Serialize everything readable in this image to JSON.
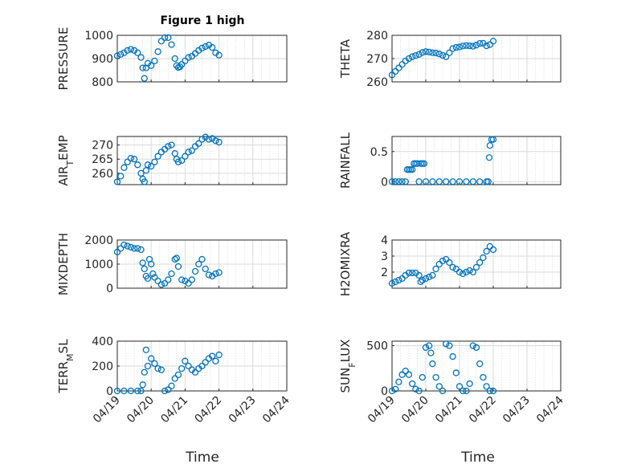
{
  "figure_title": "Figure 1 high",
  "x_axis_label": "Time",
  "x_tick_labels": [
    "04/19",
    "04/20",
    "04/21",
    "04/22",
    "04/23",
    "04/24"
  ],
  "marker_color": "#0072BD",
  "chart_data": [
    {
      "type": "scatter",
      "ylabel": "PRESSURE",
      "ylim": [
        800,
        1000
      ],
      "yticks": [
        800,
        900,
        1000
      ],
      "x": [
        0,
        0.1,
        0.2,
        0.3,
        0.4,
        0.5,
        0.6,
        0.7,
        0.75,
        0.8,
        0.85,
        0.9,
        1.0,
        1.1,
        1.2,
        1.3,
        1.4,
        1.5,
        1.6,
        1.7,
        1.75,
        1.8,
        1.85,
        1.9,
        2.0,
        2.1,
        2.2,
        2.3,
        2.4,
        2.5,
        2.6,
        2.7,
        2.8,
        2.9,
        3.0
      ],
      "y": [
        912,
        918,
        925,
        935,
        940,
        935,
        925,
        905,
        860,
        815,
        860,
        880,
        870,
        890,
        930,
        975,
        990,
        990,
        960,
        900,
        870,
        862,
        865,
        875,
        890,
        905,
        910,
        922,
        935,
        945,
        952,
        958,
        948,
        925,
        915
      ]
    },
    {
      "type": "scatter",
      "ylabel": "THETA",
      "ylim": [
        260,
        280
      ],
      "yticks": [
        260,
        270,
        280
      ],
      "x": [
        0,
        0.1,
        0.2,
        0.3,
        0.4,
        0.5,
        0.6,
        0.7,
        0.8,
        0.9,
        1.0,
        1.1,
        1.2,
        1.3,
        1.4,
        1.5,
        1.6,
        1.7,
        1.8,
        1.9,
        2.0,
        2.1,
        2.2,
        2.3,
        2.4,
        2.5,
        2.6,
        2.7,
        2.8,
        2.9,
        3.0
      ],
      "y": [
        263,
        264.5,
        266,
        267.5,
        269,
        270,
        270.8,
        271.3,
        271.8,
        272.6,
        273,
        272.8,
        272.5,
        272.4,
        272,
        271.4,
        270.8,
        272.5,
        274.3,
        274.8,
        275,
        275.4,
        275.6,
        275.5,
        275.3,
        275.8,
        276.5,
        276.6,
        275.5,
        276,
        277.5
      ]
    },
    {
      "type": "scatter",
      "ylabel": "AIR_TEMP",
      "ylim": [
        256,
        273
      ],
      "yticks": [
        260,
        265,
        270
      ],
      "x": [
        0,
        0.1,
        0.2,
        0.3,
        0.4,
        0.5,
        0.6,
        0.7,
        0.75,
        0.8,
        0.85,
        0.9,
        1.0,
        1.1,
        1.2,
        1.3,
        1.4,
        1.5,
        1.6,
        1.7,
        1.75,
        1.8,
        1.9,
        2.0,
        2.1,
        2.2,
        2.3,
        2.4,
        2.5,
        2.6,
        2.7,
        2.8,
        2.9,
        3.0
      ],
      "y": [
        257,
        259,
        262,
        264,
        265.3,
        265,
        263,
        260,
        258,
        257,
        261,
        263,
        262.5,
        264,
        266,
        267.5,
        268.5,
        269.5,
        270,
        267,
        265,
        264,
        264.5,
        266,
        267.5,
        268,
        269.5,
        270.5,
        272,
        272.8,
        272,
        272.3,
        271.5,
        271
      ]
    },
    {
      "type": "scatter",
      "ylabel": "RAINFALL",
      "ylim": [
        -0.05,
        0.75
      ],
      "yticks": [
        0,
        0.5
      ],
      "x": [
        0,
        0.1,
        0.2,
        0.3,
        0.4,
        0.45,
        0.5,
        0.55,
        0.6,
        0.65,
        0.7,
        0.75,
        0.8,
        0.85,
        0.9,
        0.95,
        1.0,
        1.2,
        1.4,
        1.6,
        1.8,
        2.0,
        2.2,
        2.4,
        2.6,
        2.8,
        2.85,
        2.88,
        2.9,
        2.95,
        3.0
      ],
      "y": [
        0,
        0,
        0,
        0,
        0,
        0.2,
        0.2,
        0.2,
        0.2,
        0.3,
        0.3,
        0.3,
        0,
        0.3,
        0.3,
        0.3,
        0,
        0,
        0,
        0,
        0,
        0,
        0,
        0,
        0,
        0,
        0,
        0.4,
        0.6,
        0.7,
        0.7
      ]
    },
    {
      "type": "scatter",
      "ylabel": "MIXDEPTH",
      "ylim": [
        0,
        2000
      ],
      "yticks": [
        0,
        1000,
        2000
      ],
      "x": [
        0,
        0.1,
        0.2,
        0.3,
        0.4,
        0.5,
        0.6,
        0.7,
        0.75,
        0.8,
        0.85,
        0.9,
        0.95,
        1.0,
        1.05,
        1.1,
        1.2,
        1.3,
        1.4,
        1.5,
        1.6,
        1.7,
        1.75,
        1.8,
        1.9,
        2.0,
        2.1,
        2.2,
        2.3,
        2.4,
        2.5,
        2.6,
        2.7,
        2.8,
        2.9,
        3.0
      ],
      "y": [
        1500,
        1650,
        1800,
        1750,
        1700,
        1650,
        1650,
        1600,
        1050,
        800,
        500,
        400,
        1200,
        1000,
        600,
        450,
        300,
        150,
        200,
        350,
        600,
        1200,
        1250,
        900,
        350,
        300,
        200,
        350,
        700,
        1000,
        1200,
        800,
        550,
        500,
        600,
        650
      ]
    },
    {
      "type": "scatter",
      "ylabel": "H2OMIXRA",
      "ylim": [
        1,
        4
      ],
      "yticks": [
        2,
        3,
        4
      ],
      "x": [
        0,
        0.1,
        0.2,
        0.3,
        0.4,
        0.5,
        0.6,
        0.7,
        0.8,
        0.85,
        0.9,
        1.0,
        1.1,
        1.2,
        1.3,
        1.4,
        1.5,
        1.6,
        1.7,
        1.8,
        1.9,
        2.0,
        2.1,
        2.2,
        2.3,
        2.4,
        2.5,
        2.6,
        2.7,
        2.8,
        2.9,
        3.0
      ],
      "y": [
        1.3,
        1.4,
        1.5,
        1.6,
        1.8,
        1.95,
        1.95,
        1.95,
        1.8,
        1.4,
        1.5,
        1.6,
        1.7,
        1.8,
        2.2,
        2.5,
        2.7,
        2.8,
        2.6,
        2.3,
        2.2,
        2.0,
        1.9,
        2.0,
        2.1,
        2.0,
        2.3,
        2.6,
        2.9,
        3.3,
        3.6,
        3.4
      ]
    },
    {
      "type": "scatter",
      "ylabel": "TERR_MSL",
      "ylim": [
        0,
        400
      ],
      "yticks": [
        0,
        200,
        400
      ],
      "x": [
        0,
        0.2,
        0.4,
        0.6,
        0.7,
        0.75,
        0.8,
        0.85,
        0.9,
        1.0,
        1.1,
        1.2,
        1.3,
        1.4,
        1.5,
        1.6,
        1.7,
        1.8,
        1.9,
        2.0,
        2.1,
        2.2,
        2.3,
        2.4,
        2.5,
        2.6,
        2.7,
        2.8,
        2.9,
        3.0
      ],
      "y": [
        0,
        0,
        0,
        0,
        0,
        50,
        150,
        330,
        200,
        260,
        220,
        180,
        170,
        0,
        10,
        40,
        100,
        130,
        180,
        240,
        200,
        170,
        150,
        180,
        200,
        230,
        260,
        280,
        240,
        290
      ]
    },
    {
      "type": "scatter",
      "ylabel": "SUN_FLUX",
      "ylim": [
        0,
        550
      ],
      "yticks": [
        0,
        500
      ],
      "x": [
        0,
        0.1,
        0.2,
        0.3,
        0.4,
        0.5,
        0.6,
        0.7,
        0.8,
        0.9,
        1.0,
        1.1,
        1.15,
        1.2,
        1.3,
        1.4,
        1.5,
        1.6,
        1.7,
        1.8,
        1.9,
        2.0,
        2.1,
        2.2,
        2.3,
        2.4,
        2.5,
        2.6,
        2.7,
        2.8,
        2.9,
        3.0
      ],
      "y": [
        0,
        20,
        100,
        180,
        220,
        180,
        80,
        20,
        0,
        150,
        480,
        500,
        420,
        300,
        150,
        50,
        0,
        520,
        500,
        380,
        200,
        50,
        0,
        0,
        80,
        500,
        480,
        300,
        150,
        50,
        0,
        0
      ]
    }
  ]
}
